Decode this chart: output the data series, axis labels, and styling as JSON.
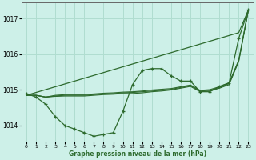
{
  "title": "Graphe pression niveau de la mer (hPa)",
  "background_color": "#cdf0e8",
  "grid_color": "#b0ddd0",
  "line_color": "#2d6a2d",
  "xlim": [
    -0.5,
    23.5
  ],
  "ylim": [
    1013.55,
    1017.45
  ],
  "yticks": [
    1014,
    1015,
    1016,
    1017
  ],
  "xticks": [
    0,
    1,
    2,
    3,
    4,
    5,
    6,
    7,
    8,
    9,
    10,
    11,
    12,
    13,
    14,
    15,
    16,
    17,
    18,
    19,
    20,
    21,
    22,
    23
  ],
  "series_wiggly": [
    1014.9,
    1014.8,
    1014.6,
    1014.25,
    1014.0,
    1013.9,
    1013.8,
    1013.7,
    1013.75,
    1013.8,
    1014.4,
    1015.15,
    1015.55,
    1015.6,
    1015.6,
    1015.4,
    1015.25,
    1015.25,
    1014.95,
    1014.95,
    1015.1,
    1015.2,
    1016.45,
    1017.25
  ],
  "series_diagonal": [
    1014.85,
    1014.93,
    1015.01,
    1015.09,
    1015.17,
    1015.25,
    1015.33,
    1015.41,
    1015.49,
    1015.57,
    1015.65,
    1015.73,
    1015.81,
    1015.89,
    1015.97,
    1016.05,
    1016.13,
    1016.21,
    1016.29,
    1016.37,
    1016.45,
    1016.53,
    1016.61,
    1017.25
  ],
  "series_flat1": [
    1014.85,
    1014.85,
    1014.8,
    1014.82,
    1014.83,
    1014.83,
    1014.83,
    1014.85,
    1014.87,
    1014.88,
    1014.9,
    1014.9,
    1014.92,
    1014.95,
    1014.97,
    1015.0,
    1015.05,
    1015.1,
    1014.95,
    1014.97,
    1015.05,
    1015.15,
    1015.8,
    1017.25
  ],
  "series_flat2": [
    1014.85,
    1014.85,
    1014.8,
    1014.83,
    1014.85,
    1014.85,
    1014.85,
    1014.87,
    1014.89,
    1014.9,
    1014.92,
    1014.93,
    1014.95,
    1014.97,
    1014.99,
    1015.02,
    1015.07,
    1015.12,
    1014.97,
    1014.99,
    1015.07,
    1015.18,
    1015.82,
    1017.25
  ],
  "series_flat3": [
    1014.85,
    1014.85,
    1014.8,
    1014.85,
    1014.87,
    1014.87,
    1014.87,
    1014.89,
    1014.91,
    1014.92,
    1014.94,
    1014.95,
    1014.97,
    1015.0,
    1015.02,
    1015.04,
    1015.09,
    1015.14,
    1014.99,
    1015.01,
    1015.09,
    1015.2,
    1015.84,
    1017.25
  ]
}
